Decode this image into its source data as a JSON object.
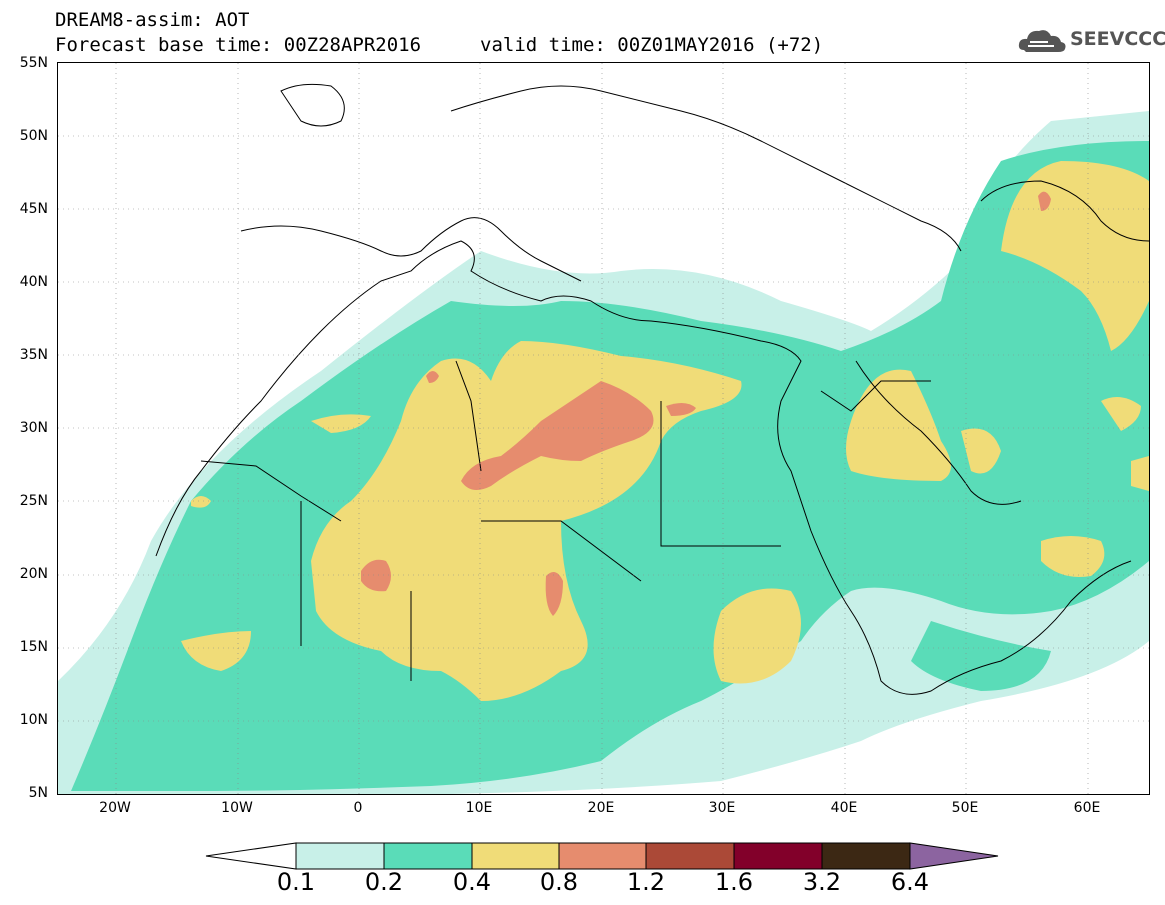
{
  "header": {
    "title_line1": "DREAM8-assim: AOT",
    "title_line2": "Forecast base time: 00Z28APR2016",
    "valid_time": "valid time: 00Z01MAY2016 (+72)",
    "logo_text": "SEEVCCC"
  },
  "axes": {
    "lat_labels": [
      "55N",
      "50N",
      "45N",
      "40N",
      "35N",
      "30N",
      "25N",
      "20N",
      "15N",
      "10N",
      "5N"
    ],
    "lon_labels": [
      "20W",
      "10W",
      "0",
      "10E",
      "20E",
      "30E",
      "40E",
      "50E",
      "60E"
    ]
  },
  "colorbar": {
    "labels": [
      "0.1",
      "0.2",
      "0.4",
      "0.8",
      "1.2",
      "1.6",
      "3.2",
      "6.4"
    ],
    "colors": {
      "lt01": "#ffffff",
      "c01_02": "#c8f0e8",
      "c02_04": "#5adcb8",
      "c04_08": "#f0dc78",
      "c08_12": "#e68c6e",
      "c12_16": "#ab4937",
      "c16_32": "#82002a",
      "c32_64": "#3c2814",
      "gt64": "#8c64a0"
    }
  }
}
